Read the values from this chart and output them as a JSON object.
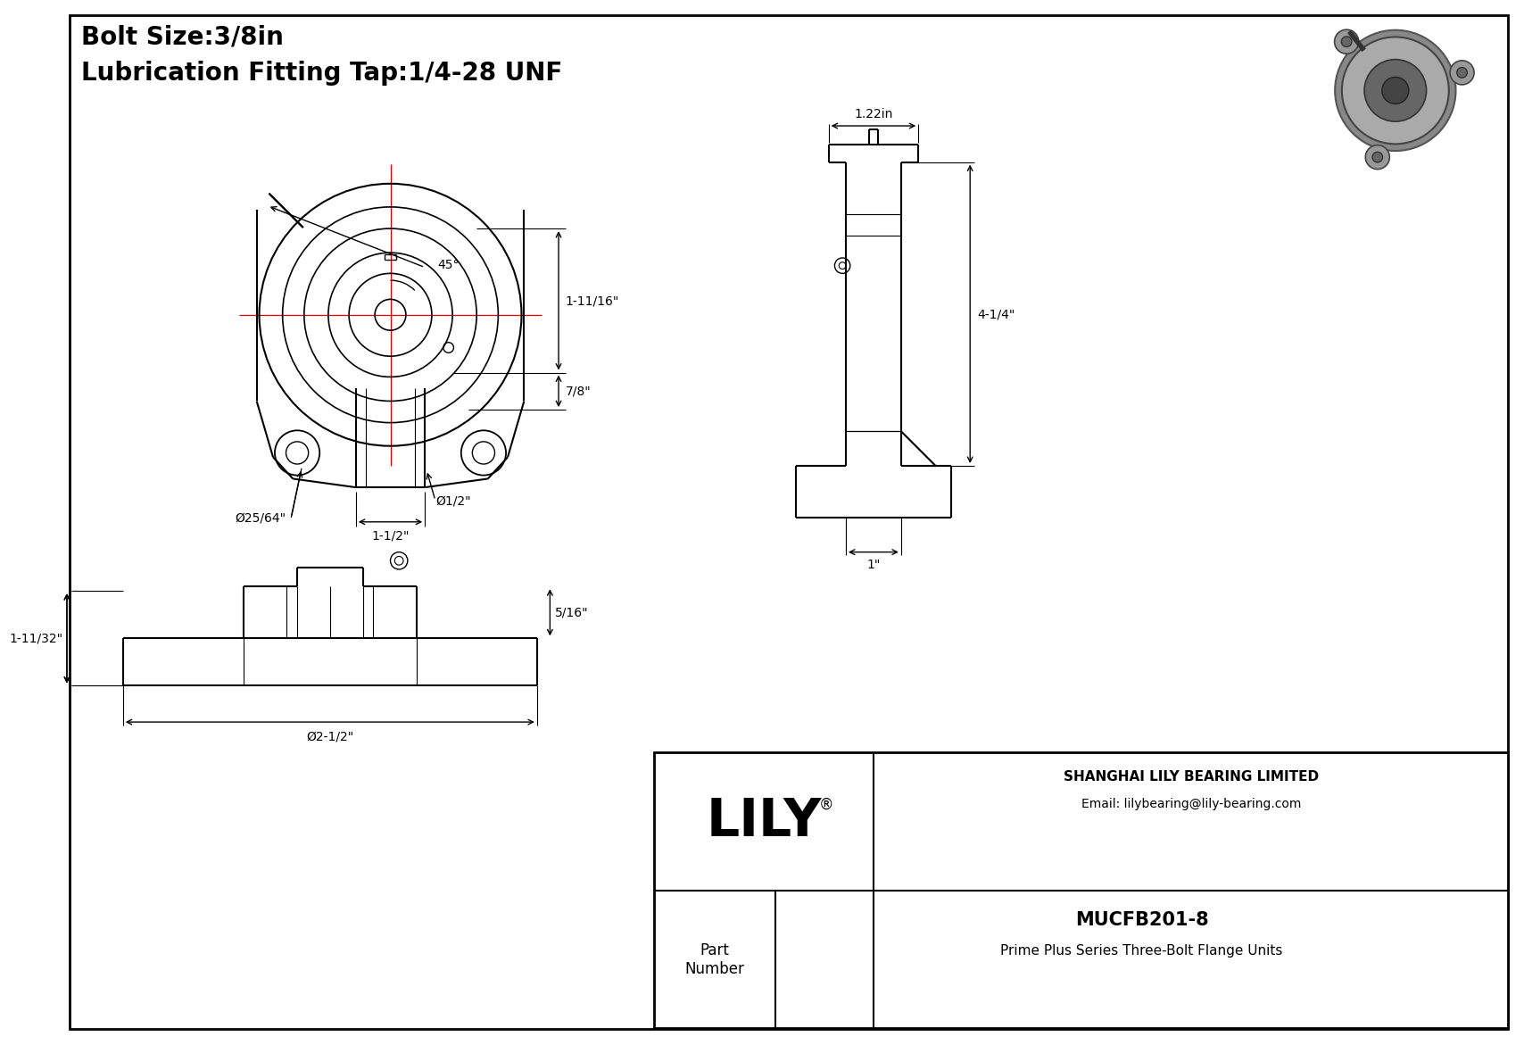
{
  "background_color": "#ffffff",
  "line_color": "#000000",
  "red_line_color": "#dd0000",
  "title_line1": "Bolt Size:3/8in",
  "title_line2": "Lubrication Fitting Tap:1/4-28 UNF",
  "title_fontsize": 20,
  "company_name": "SHANGHAI LILY BEARING LIMITED",
  "company_email": "Email: lilybearing@lily-bearing.com",
  "part_label": "Part\nNumber",
  "part_number": "MUCFB201-8",
  "part_desc": "Prime Plus Series Three-Bolt Flange Units",
  "lily_logo": "LILY",
  "dim_45": "45°",
  "dim_1_11_16": "1-11/16\"",
  "dim_7_8": "7/8\"",
  "dim_phi_25_64": "Ø25/64\"",
  "dim_phi_1_2": "Ø1/2\"",
  "dim_1_1_2": "1-1/2\"",
  "dim_1_22in": "1.22in",
  "dim_4_1_4": "4-1/4\"",
  "dim_1in": "1\"",
  "dim_1_11_32": "1-11/32\"",
  "dim_5_16": "5/16\"",
  "dim_phi_2_1_2": "Ø2-1/2\""
}
